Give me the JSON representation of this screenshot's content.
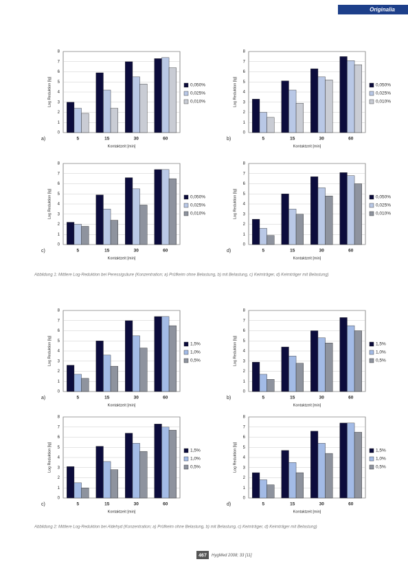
{
  "header": "Originalia",
  "captions": [
    "Abbildung 1: Mittlere Log-Reduktion bei Peressigsäure (Konzentration; a) Prüfkeim ohne Belastung, b) mit Belastung, c) Keimträger, d) Keimträger mit Belastung)",
    "Abbildung 2: Mittlere Log-Reduktion bei Aldehyd (Konzentration; a) Prüfkeim ohne Belastung, b) mit Belastung, c) Keimträger, d) Keimträger mit Belastung)"
  ],
  "footer": {
    "page": "467",
    "journal": "HygMed 2008; 33 [11]"
  },
  "chart_data": [
    {
      "type": "bar",
      "label": "a)",
      "xlabel": "Kontaktzeit [min]",
      "ylabel": "Log Reduktion [lg]",
      "categories": [
        "5",
        "15",
        "30",
        "60"
      ],
      "ylim": [
        0,
        8
      ],
      "yticks": [
        0,
        1,
        2,
        3,
        4,
        5,
        6,
        7,
        8
      ],
      "grid": true,
      "series": [
        {
          "name": "0,050%",
          "color": "#0c0c3c",
          "values": [
            3.0,
            5.9,
            7.0,
            7.3
          ]
        },
        {
          "name": "0,025%",
          "color": "#b9c8e6",
          "values": [
            2.4,
            4.2,
            5.5,
            7.4
          ]
        },
        {
          "name": "0,010%",
          "color": "#c9ccd4",
          "values": [
            1.9,
            2.4,
            4.8,
            6.4
          ]
        }
      ]
    },
    {
      "type": "bar",
      "label": "b)",
      "xlabel": "Kontaktzeit [min]",
      "ylabel": "Log Reduktion [lg]",
      "categories": [
        "5",
        "15",
        "30",
        "60"
      ],
      "ylim": [
        0,
        8
      ],
      "yticks": [
        0,
        1,
        2,
        3,
        4,
        5,
        6,
        7,
        8
      ],
      "grid": true,
      "series": [
        {
          "name": "0,050%",
          "color": "#0c0c3c",
          "values": [
            3.3,
            5.1,
            6.3,
            7.5
          ]
        },
        {
          "name": "0,025%",
          "color": "#b9c8e6",
          "values": [
            2.0,
            4.2,
            5.5,
            7.1
          ]
        },
        {
          "name": "0,010%",
          "color": "#c9ccd4",
          "values": [
            1.5,
            2.9,
            5.2,
            6.7
          ]
        }
      ]
    },
    {
      "type": "bar",
      "label": "c)",
      "xlabel": "Kontaktzeit [min]",
      "ylabel": "Log Reduktion [lg]",
      "categories": [
        "5",
        "15",
        "30",
        "60"
      ],
      "ylim": [
        0,
        8
      ],
      "yticks": [
        0,
        1,
        2,
        3,
        4,
        5,
        6,
        7,
        8
      ],
      "grid": true,
      "series": [
        {
          "name": "0,050%",
          "color": "#0c0c3c",
          "values": [
            2.2,
            4.9,
            6.6,
            7.4
          ]
        },
        {
          "name": "0,025%",
          "color": "#b9c8e6",
          "values": [
            2.0,
            3.5,
            5.5,
            7.4
          ]
        },
        {
          "name": "0,010%",
          "color": "#8e939e",
          "values": [
            1.8,
            2.4,
            3.9,
            6.5
          ]
        }
      ]
    },
    {
      "type": "bar",
      "label": "d)",
      "xlabel": "Kontaktzeit [min]",
      "ylabel": "Log Reduktion [lg]",
      "categories": [
        "5",
        "15",
        "30",
        "60"
      ],
      "ylim": [
        0,
        8
      ],
      "yticks": [
        0,
        1,
        2,
        3,
        4,
        5,
        6,
        7,
        8
      ],
      "grid": true,
      "series": [
        {
          "name": "0,050%",
          "color": "#0c0c3c",
          "values": [
            2.5,
            5.0,
            6.7,
            7.1
          ]
        },
        {
          "name": "0,025%",
          "color": "#b9c8e6",
          "values": [
            1.6,
            3.5,
            5.6,
            6.8
          ]
        },
        {
          "name": "0,010%",
          "color": "#8e939e",
          "values": [
            0.9,
            3.0,
            4.8,
            6.0
          ]
        }
      ]
    },
    {
      "type": "bar",
      "label": "a)",
      "xlabel": "Kontaktzeit [min]",
      "ylabel": "Log Reduktion [lg]",
      "categories": [
        "5",
        "15",
        "30",
        "60"
      ],
      "ylim": [
        0,
        8
      ],
      "yticks": [
        0,
        1,
        2,
        3,
        4,
        5,
        6,
        7,
        8
      ],
      "grid": true,
      "series": [
        {
          "name": "1,5%",
          "color": "#0c0c3c",
          "values": [
            2.6,
            5.0,
            7.0,
            7.4
          ]
        },
        {
          "name": "1,0%",
          "color": "#a3bbe6",
          "values": [
            1.7,
            3.6,
            5.5,
            7.4
          ]
        },
        {
          "name": "0,5%",
          "color": "#8e939e",
          "values": [
            1.3,
            2.5,
            4.3,
            6.5
          ]
        }
      ]
    },
    {
      "type": "bar",
      "label": "b)",
      "xlabel": "Kontaktzeit [min]",
      "ylabel": "Log Reduktion [lg]",
      "categories": [
        "5",
        "15",
        "30",
        "60"
      ],
      "ylim": [
        0,
        8
      ],
      "yticks": [
        0,
        1,
        2,
        3,
        4,
        5,
        6,
        7,
        8
      ],
      "grid": true,
      "series": [
        {
          "name": "1,5%",
          "color": "#0c0c3c",
          "values": [
            2.9,
            4.4,
            6.0,
            7.3
          ]
        },
        {
          "name": "1,0%",
          "color": "#a3bbe6",
          "values": [
            1.7,
            3.5,
            5.3,
            6.5
          ]
        },
        {
          "name": "0,5%",
          "color": "#8e939e",
          "values": [
            1.2,
            2.8,
            4.8,
            6.0
          ]
        }
      ]
    },
    {
      "type": "bar",
      "label": "c)",
      "xlabel": "Kontaktzeit [min]",
      "ylabel": "Log Reduktion [lg]",
      "categories": [
        "5",
        "15",
        "30",
        "60"
      ],
      "ylim": [
        0,
        8
      ],
      "yticks": [
        0,
        1,
        2,
        3,
        4,
        5,
        6,
        7,
        8
      ],
      "grid": true,
      "series": [
        {
          "name": "1,5%",
          "color": "#0c0c3c",
          "values": [
            3.1,
            5.1,
            6.4,
            7.3
          ]
        },
        {
          "name": "1,0%",
          "color": "#a3bbe6",
          "values": [
            1.5,
            3.6,
            5.4,
            7.0
          ]
        },
        {
          "name": "0,5%",
          "color": "#8e939e",
          "values": [
            1.0,
            2.8,
            4.6,
            6.7
          ]
        }
      ]
    },
    {
      "type": "bar",
      "label": "d)",
      "xlabel": "Kontaktzeit [min]",
      "ylabel": "Log Reduktion [lg]",
      "categories": [
        "5",
        "15",
        "30",
        "60"
      ],
      "ylim": [
        0,
        8
      ],
      "yticks": [
        0,
        1,
        2,
        3,
        4,
        5,
        6,
        7,
        8
      ],
      "grid": true,
      "series": [
        {
          "name": "1,5%",
          "color": "#0c0c3c",
          "values": [
            2.5,
            4.7,
            6.6,
            7.4
          ]
        },
        {
          "name": "1,0%",
          "color": "#a3bbe6",
          "values": [
            1.8,
            3.5,
            5.4,
            7.4
          ]
        },
        {
          "name": "0,5%",
          "color": "#8e939e",
          "values": [
            1.3,
            2.5,
            4.4,
            6.5
          ]
        }
      ]
    }
  ]
}
